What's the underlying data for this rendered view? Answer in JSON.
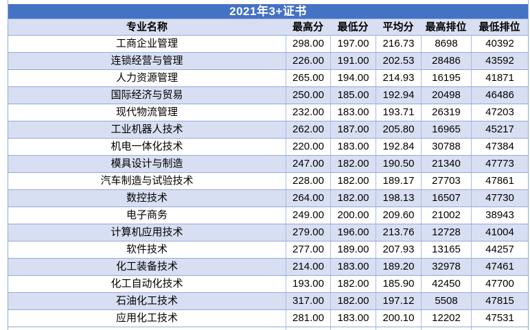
{
  "title": "2021年3+证书",
  "table": {
    "headers": [
      "专业名称",
      "最高分",
      "最低分",
      "平均分",
      "最高排位",
      "最低排位"
    ],
    "rows": [
      {
        "name": "工商企业管理",
        "values": [
          "298.00",
          "197.00",
          "216.73",
          "8698",
          "40392"
        ]
      },
      {
        "name": "连锁经营与管理",
        "values": [
          "226.00",
          "191.00",
          "202.53",
          "28486",
          "43592"
        ]
      },
      {
        "name": "人力资源管理",
        "values": [
          "265.00",
          "194.00",
          "214.93",
          "16195",
          "41871"
        ]
      },
      {
        "name": "国际经济与贸易",
        "values": [
          "250.00",
          "185.00",
          "192.94",
          "20498",
          "46486"
        ]
      },
      {
        "name": "现代物流管理",
        "values": [
          "232.00",
          "183.00",
          "193.71",
          "26319",
          "47203"
        ]
      },
      {
        "name": "工业机器人技术",
        "values": [
          "262.00",
          "187.00",
          "205.80",
          "16965",
          "45217"
        ]
      },
      {
        "name": "机电一体化技术",
        "values": [
          "220.00",
          "183.00",
          "192.84",
          "30788",
          "47384"
        ]
      },
      {
        "name": "模具设计与制造",
        "values": [
          "247.00",
          "182.00",
          "190.50",
          "21340",
          "47773"
        ]
      },
      {
        "name": "汽车制造与试验技术",
        "values": [
          "228.00",
          "182.00",
          "189.17",
          "27703",
          "47861"
        ]
      },
      {
        "name": "数控技术",
        "values": [
          "264.00",
          "182.00",
          "198.13",
          "16507",
          "47730"
        ]
      },
      {
        "name": "电子商务",
        "values": [
          "249.00",
          "200.00",
          "209.60",
          "21002",
          "38943"
        ]
      },
      {
        "name": "计算机应用技术",
        "values": [
          "279.00",
          "196.00",
          "213.76",
          "12728",
          "41004"
        ]
      },
      {
        "name": "软件技术",
        "values": [
          "277.00",
          "189.00",
          "207.93",
          "13165",
          "44257"
        ]
      },
      {
        "name": "化工装备技术",
        "values": [
          "214.00",
          "183.00",
          "189.20",
          "32978",
          "47461"
        ]
      },
      {
        "name": "化工自动化技术",
        "values": [
          "193.00",
          "182.00",
          "185.90",
          "42450",
          "47700"
        ]
      },
      {
        "name": "石油化工技术",
        "values": [
          "317.00",
          "182.00",
          "197.12",
          "5508",
          "47815"
        ]
      },
      {
        "name": "应用化工技术",
        "values": [
          "281.00",
          "183.00",
          "200.10",
          "12202",
          "47531"
        ]
      }
    ]
  },
  "chart_data": {
    "type": "table",
    "title": "2021年3+证书",
    "columns": [
      "专业名称",
      "最高分",
      "最低分",
      "平均分",
      "最高排位",
      "最低排位"
    ],
    "rows": [
      [
        "工商企业管理",
        298.0,
        197.0,
        216.73,
        8698,
        40392
      ],
      [
        "连锁经营与管理",
        226.0,
        191.0,
        202.53,
        28486,
        43592
      ],
      [
        "人力资源管理",
        265.0,
        194.0,
        214.93,
        16195,
        41871
      ],
      [
        "国际经济与贸易",
        250.0,
        185.0,
        192.94,
        20498,
        46486
      ],
      [
        "现代物流管理",
        232.0,
        183.0,
        193.71,
        26319,
        47203
      ],
      [
        "工业机器人技术",
        262.0,
        187.0,
        205.8,
        16965,
        45217
      ],
      [
        "机电一体化技术",
        220.0,
        183.0,
        192.84,
        30788,
        47384
      ],
      [
        "模具设计与制造",
        247.0,
        182.0,
        190.5,
        21340,
        47773
      ],
      [
        "汽车制造与试验技术",
        228.0,
        182.0,
        189.17,
        27703,
        47861
      ],
      [
        "数控技术",
        264.0,
        182.0,
        198.13,
        16507,
        47730
      ],
      [
        "电子商务",
        249.0,
        200.0,
        209.6,
        21002,
        38943
      ],
      [
        "计算机应用技术",
        279.0,
        196.0,
        213.76,
        12728,
        41004
      ],
      [
        "软件技术",
        277.0,
        189.0,
        207.93,
        13165,
        44257
      ],
      [
        "化工装备技术",
        214.0,
        183.0,
        189.2,
        32978,
        47461
      ],
      [
        "化工自动化技术",
        193.0,
        182.0,
        185.9,
        42450,
        47700
      ],
      [
        "石油化工技术",
        317.0,
        182.0,
        197.12,
        5508,
        47815
      ],
      [
        "应用化工技术",
        281.0,
        183.0,
        200.1,
        12202,
        47531
      ]
    ]
  },
  "colors": {
    "title_bg": "#4472C4",
    "band_bg": "#D9DFF2",
    "header_bg": "#D9DFF2",
    "border": "#8FA9DC",
    "title_text": "#FFFFFF"
  }
}
